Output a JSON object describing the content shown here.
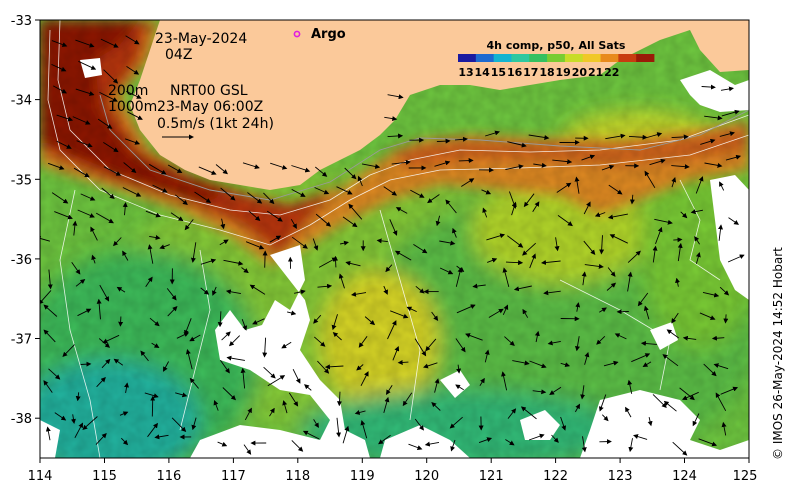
{
  "map": {
    "x_axis": {
      "min": 114,
      "max": 125,
      "ticks": [
        "114",
        "115",
        "116",
        "117",
        "118",
        "119",
        "120",
        "121",
        "122",
        "123",
        "124",
        "125"
      ]
    },
    "y_axis": {
      "min": -38.5,
      "max": -33,
      "ticks": [
        "-33",
        "-34",
        "-35",
        "-36",
        "-37",
        "-38"
      ]
    }
  },
  "annotations": {
    "date": "23-May-2024",
    "time": "04Z",
    "depth_200": "200m",
    "depth_1000": "1000m",
    "product": "NRT00 GSL",
    "product_time": "23-May 06:00Z",
    "velocity_scale": "0.5m/s (1kt 24h)"
  },
  "legend": {
    "argo": "Argo",
    "argo_color": "#e020e0"
  },
  "colorbar": {
    "title": "4h comp, p50, All Sats",
    "ticks": [
      "13",
      "14",
      "15",
      "16",
      "17",
      "18",
      "19",
      "20",
      "21",
      "22"
    ],
    "colors": [
      "#1a1aa0",
      "#1e6ad0",
      "#14b4d0",
      "#2ec8a0",
      "#34c060",
      "#78cc32",
      "#c8dc28",
      "#f0c828",
      "#e88a1c",
      "#c83c10",
      "#9a1a08"
    ]
  },
  "credit": "© IMOS 26-May-2024 14:52 Hobart",
  "colors": {
    "land": "#fbc99a",
    "cloud": "#ffffff"
  }
}
